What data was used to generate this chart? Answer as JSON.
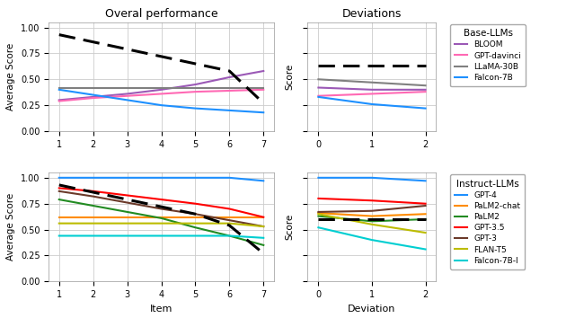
{
  "title_left": "Overal performance",
  "title_right": "Deviations",
  "xlabel_left": "Item",
  "xlabel_right": "Deviation",
  "ylabel_avg": "Average Score",
  "ylabel_score": "Score",
  "base_llms": {
    "BLOOM": {
      "color": "#9B59B6",
      "perf": [
        0.3,
        0.33,
        0.36,
        0.4,
        0.45,
        0.52,
        0.58
      ],
      "dev": [
        0.42,
        0.4,
        0.4
      ]
    },
    "GPT-davinci": {
      "color": "#FF69B4",
      "perf": [
        0.29,
        0.32,
        0.34,
        0.36,
        0.38,
        0.39,
        0.4
      ],
      "dev": [
        0.34,
        0.36,
        0.38
      ]
    },
    "LLaMA-30B": {
      "color": "#808080",
      "perf": [
        0.42,
        0.42,
        0.42,
        0.42,
        0.42,
        0.42,
        0.42
      ],
      "dev": [
        0.5,
        0.47,
        0.44
      ]
    },
    "Falcon-7B": {
      "color": "#1E90FF",
      "perf": [
        0.4,
        0.35,
        0.3,
        0.25,
        0.22,
        0.2,
        0.18
      ],
      "dev": [
        0.33,
        0.26,
        0.22
      ]
    }
  },
  "base_children": [
    0.93,
    0.86,
    0.79,
    0.72,
    0.65,
    0.58,
    0.27
  ],
  "base_children_dev": [
    0.63,
    0.63,
    0.63
  ],
  "instruct_llms": {
    "GPT-4": {
      "color": "#1E90FF",
      "perf": [
        1.0,
        1.0,
        1.0,
        1.0,
        1.0,
        1.0,
        0.97
      ],
      "dev": [
        1.0,
        1.0,
        0.97
      ]
    },
    "PaLM2-chat": {
      "color": "#FF8C00",
      "perf": [
        0.62,
        0.62,
        0.62,
        0.62,
        0.62,
        0.62,
        0.62
      ],
      "dev": [
        0.66,
        0.63,
        0.65
      ]
    },
    "PaLM2": {
      "color": "#228B22",
      "perf": [
        0.79,
        0.73,
        0.67,
        0.61,
        0.52,
        0.44,
        0.35
      ],
      "dev": [
        0.63,
        0.58,
        0.6
      ]
    },
    "GPT-3.5": {
      "color": "#FF0000",
      "perf": [
        0.9,
        0.87,
        0.83,
        0.79,
        0.75,
        0.7,
        0.62
      ],
      "dev": [
        0.8,
        0.78,
        0.75
      ]
    },
    "GPT-3": {
      "color": "#6B3A2A",
      "perf": [
        0.87,
        0.82,
        0.76,
        0.7,
        0.65,
        0.59,
        0.53
      ],
      "dev": [
        0.67,
        0.68,
        0.73
      ]
    },
    "FLAN-T5": {
      "color": "#BCBC00",
      "perf": [
        0.56,
        0.56,
        0.56,
        0.56,
        0.56,
        0.56,
        0.53
      ],
      "dev": [
        0.65,
        0.55,
        0.47
      ]
    },
    "Falcon-7B-I": {
      "color": "#00CED1",
      "perf": [
        0.44,
        0.44,
        0.44,
        0.44,
        0.44,
        0.44,
        0.42
      ],
      "dev": [
        0.52,
        0.4,
        0.31
      ]
    }
  },
  "instruct_children": [
    0.93,
    0.86,
    0.79,
    0.72,
    0.65,
    0.54,
    0.27
  ],
  "instruct_children_dev": [
    0.6,
    0.6,
    0.6
  ],
  "items": [
    1,
    2,
    3,
    4,
    5,
    6,
    7
  ],
  "deviations": [
    0,
    1,
    2
  ]
}
